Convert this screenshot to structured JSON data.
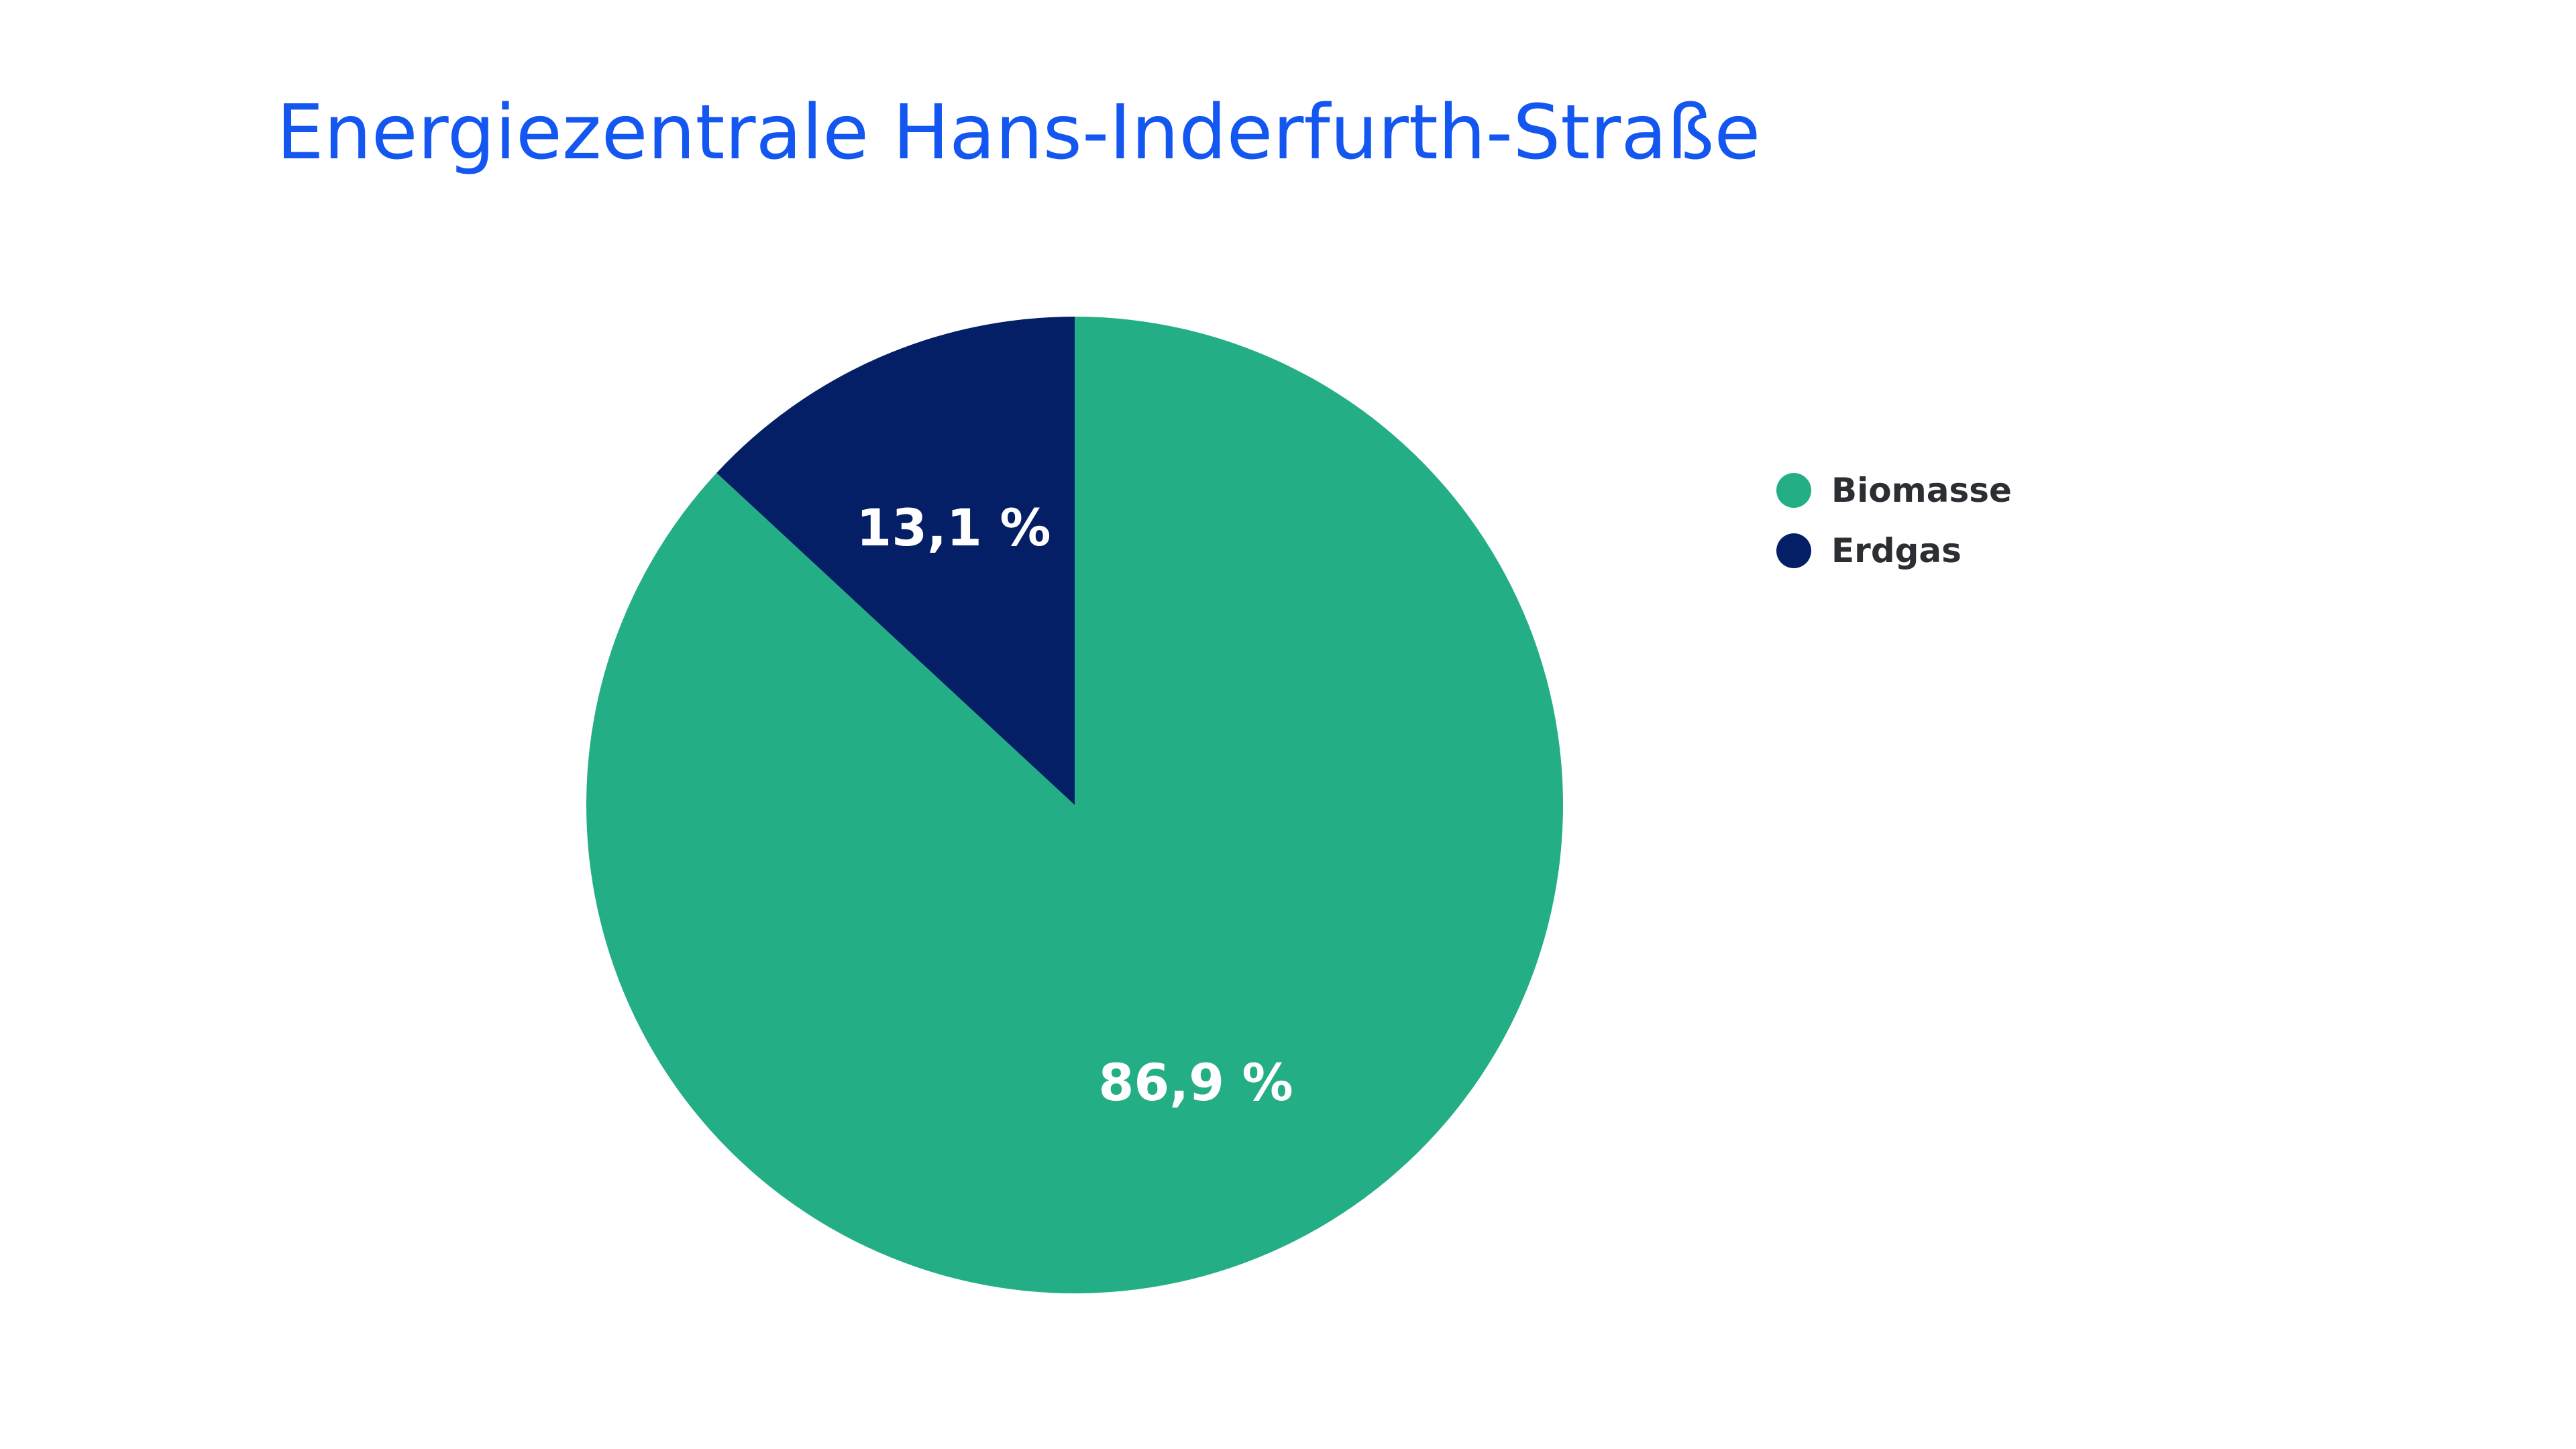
{
  "chart_data": {
    "type": "pie",
    "title": "Energiezentrale Hans-Inderfurth-Straße",
    "categories": [
      "Biomasse",
      "Erdgas"
    ],
    "values": [
      86.9,
      13.1
    ],
    "value_labels": [
      "86,9 %",
      "13,1 %"
    ],
    "colors": [
      "#24ae85",
      "#041f66"
    ],
    "start_angle_deg": 0,
    "direction": "clockwise",
    "legend_position": "right",
    "legend_marker": "circle"
  }
}
